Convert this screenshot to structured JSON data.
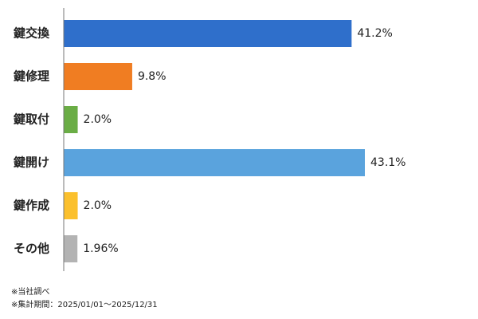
{
  "chart_data": {
    "type": "hbar",
    "categories": [
      "鍵交換",
      "鍵修理",
      "鍵取付",
      "鍵開け",
      "鍵作成",
      "その他"
    ],
    "values": [
      41.2,
      9.8,
      2.0,
      43.1,
      2.0,
      1.96
    ],
    "value_labels": [
      "41.2%",
      "9.8%",
      "2.0%",
      "43.1%",
      "2.0%",
      "1.96%"
    ],
    "colors": [
      "#2f6fcb",
      "#f07d22",
      "#6aad45",
      "#5aa3dd",
      "#fbc02d",
      "#b3b3b3"
    ],
    "notes": [
      "※当社調べ",
      "※集計期間：2025/01/01～2025/12/31"
    ]
  }
}
